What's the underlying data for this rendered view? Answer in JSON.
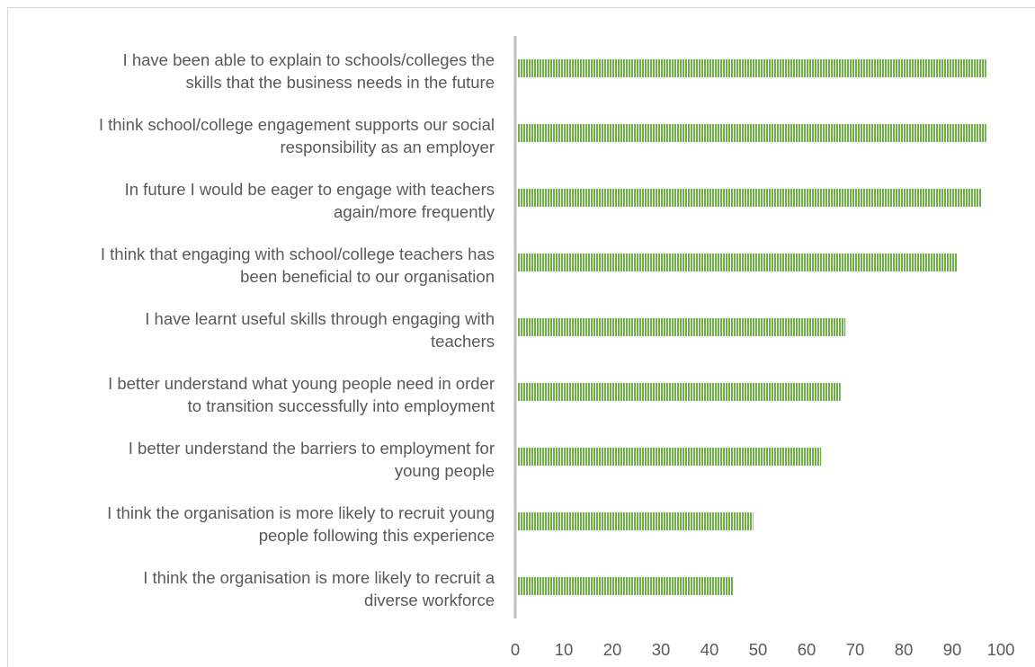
{
  "chart_data": {
    "type": "bar",
    "orientation": "horizontal",
    "title": "",
    "xlabel": "",
    "ylabel": "",
    "xlim": [
      0,
      100
    ],
    "xticks": [
      0,
      10,
      20,
      30,
      40,
      50,
      60,
      70,
      80,
      90,
      100
    ],
    "grid": false,
    "legend": "none",
    "bar_color": "#70ad47",
    "categories": [
      [
        "I have been able to explain to schools/colleges the",
        "skills that the business needs in the future"
      ],
      [
        "I think school/college engagement supports our social",
        "responsibility as an employer"
      ],
      [
        "In future I would be eager to engage with teachers",
        "again/more frequently"
      ],
      [
        "I think that engaging with school/college teachers has",
        "been beneficial to our organisation"
      ],
      [
        "I have learnt useful skills through engaging with",
        "teachers"
      ],
      [
        "I better understand what young people need in order",
        "to transition successfully into employment"
      ],
      [
        "I better understand the barriers to employment for",
        "young people"
      ],
      [
        "I think the organisation is more likely to recruit young",
        "people following this experience"
      ],
      [
        "I think the organisation is more likely to recruit a",
        "diverse workforce"
      ]
    ],
    "values": [
      97,
      97,
      96,
      91,
      68,
      67,
      63,
      49,
      45
    ]
  }
}
